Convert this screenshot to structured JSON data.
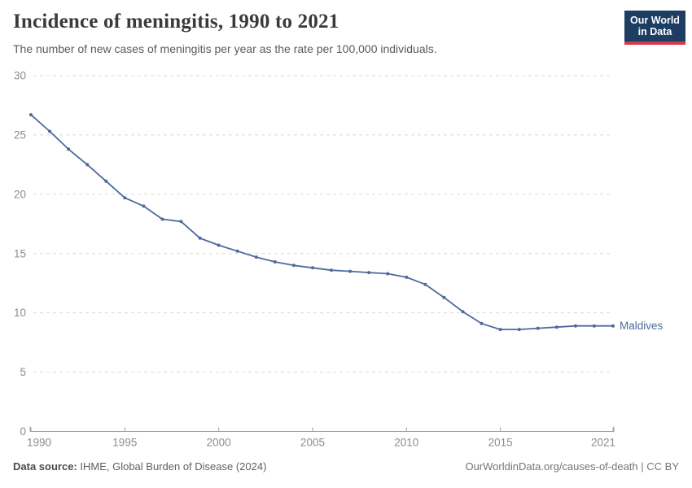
{
  "header": {
    "title": "Incidence of meningitis, 1990 to 2021",
    "subtitle": "The number of new cases of meningitis per year as the rate per 100,000 individuals."
  },
  "logo": {
    "line1": "Our World",
    "line2": "in Data",
    "navy": "#1d3d63",
    "red": "#d13b4b"
  },
  "footer": {
    "source_label": "Data source:",
    "source_value": "IHME, Global Burden of Disease (2024)",
    "url": "OurWorldinData.org/causes-of-death",
    "separator": " | ",
    "license": "CC BY"
  },
  "chart_data": {
    "type": "line",
    "title": "Incidence of meningitis, 1990 to 2021",
    "subtitle": "The number of new cases of meningitis per year as the rate per 100,000 individuals.",
    "xlabel": "",
    "ylabel": "",
    "ylim": [
      0,
      30
    ],
    "y_ticks": [
      0,
      5,
      10,
      15,
      20,
      25,
      30
    ],
    "x_ticks": [
      1990,
      1995,
      2000,
      2005,
      2010,
      2015,
      2021
    ],
    "grid": "horizontal-dashed",
    "legend_position": "end-of-line",
    "x": [
      1990,
      1991,
      1992,
      1993,
      1994,
      1995,
      1996,
      1997,
      1998,
      1999,
      2000,
      2001,
      2002,
      2003,
      2004,
      2005,
      2006,
      2007,
      2008,
      2009,
      2010,
      2011,
      2012,
      2013,
      2014,
      2015,
      2016,
      2017,
      2018,
      2019,
      2020,
      2021
    ],
    "series": [
      {
        "name": "Maldives",
        "color": "#4c6a9c",
        "values": [
          26.7,
          25.3,
          23.8,
          22.5,
          21.1,
          19.7,
          19.0,
          17.9,
          17.7,
          16.3,
          15.7,
          15.2,
          14.7,
          14.3,
          14.0,
          13.8,
          13.6,
          13.5,
          13.4,
          13.3,
          13.0,
          12.4,
          11.3,
          10.1,
          9.1,
          8.6,
          8.6,
          8.7,
          8.8,
          8.9,
          8.9,
          8.9
        ]
      }
    ]
  }
}
